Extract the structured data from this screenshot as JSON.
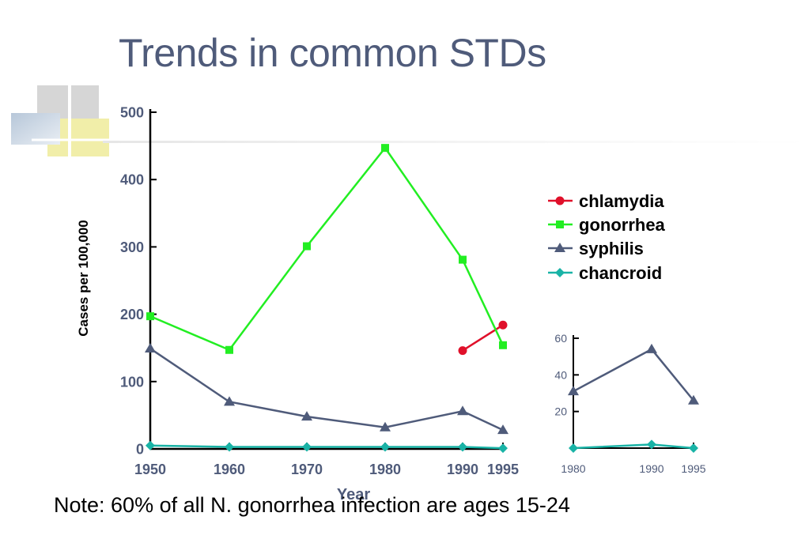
{
  "slide": {
    "title": "Trends in common STDs",
    "note": "Note: 60% of all N. gonorrhea infection are ages 15-24"
  },
  "chart_data": [
    {
      "type": "line",
      "title": "",
      "xlabel": "Year",
      "ylabel": "Cases per 100,000",
      "x": [
        1950,
        1960,
        1970,
        1980,
        1990,
        1995
      ],
      "x_tick_labels": [
        "1950",
        "1960",
        "1970",
        "1980",
        "1990",
        "1995"
      ],
      "y_tick_labels": [
        "0",
        "100",
        "200",
        "300",
        "400",
        "500"
      ],
      "ylim": [
        0,
        500
      ],
      "legend_position": "right",
      "series": [
        {
          "name": "chlamydia",
          "color": "#e0102a",
          "marker": "circle",
          "points": [
            [
              1990,
              146
            ],
            [
              1995,
              184
            ]
          ]
        },
        {
          "name": "gonorrhea",
          "color": "#22ee22",
          "marker": "square",
          "points": [
            [
              1950,
              197
            ],
            [
              1960,
              147
            ],
            [
              1970,
              301
            ],
            [
              1980,
              447
            ],
            [
              1990,
              281
            ],
            [
              1995,
              154
            ]
          ]
        },
        {
          "name": "syphilis",
          "color": "#4f5b7a",
          "marker": "triangle",
          "points": [
            [
              1950,
              149
            ],
            [
              1960,
              70
            ],
            [
              1970,
              48
            ],
            [
              1980,
              32
            ],
            [
              1990,
              56
            ],
            [
              1995,
              28
            ]
          ]
        },
        {
          "name": "chancroid",
          "color": "#19b3a6",
          "marker": "diamond",
          "points": [
            [
              1950,
              5
            ],
            [
              1960,
              3
            ],
            [
              1970,
              3
            ],
            [
              1980,
              3
            ],
            [
              1990,
              3
            ],
            [
              1995,
              1
            ]
          ]
        }
      ]
    },
    {
      "type": "line",
      "title": "",
      "xlabel": "",
      "ylabel": "",
      "x": [
        1980,
        1990,
        1995
      ],
      "x_tick_labels": [
        "1980",
        "1990",
        "1995"
      ],
      "y_tick_labels": [
        "20",
        "40",
        "60"
      ],
      "ylim": [
        0,
        60
      ],
      "series": [
        {
          "color": "#4f5b7a",
          "marker": "triangle",
          "points": [
            [
              1980,
              31
            ],
            [
              1990,
              54
            ],
            [
              1995,
              26
            ]
          ]
        },
        {
          "color": "#19b3a6",
          "marker": "diamond",
          "points": [
            [
              1980,
              0
            ],
            [
              1990,
              2
            ],
            [
              1995,
              0
            ]
          ]
        }
      ]
    }
  ]
}
